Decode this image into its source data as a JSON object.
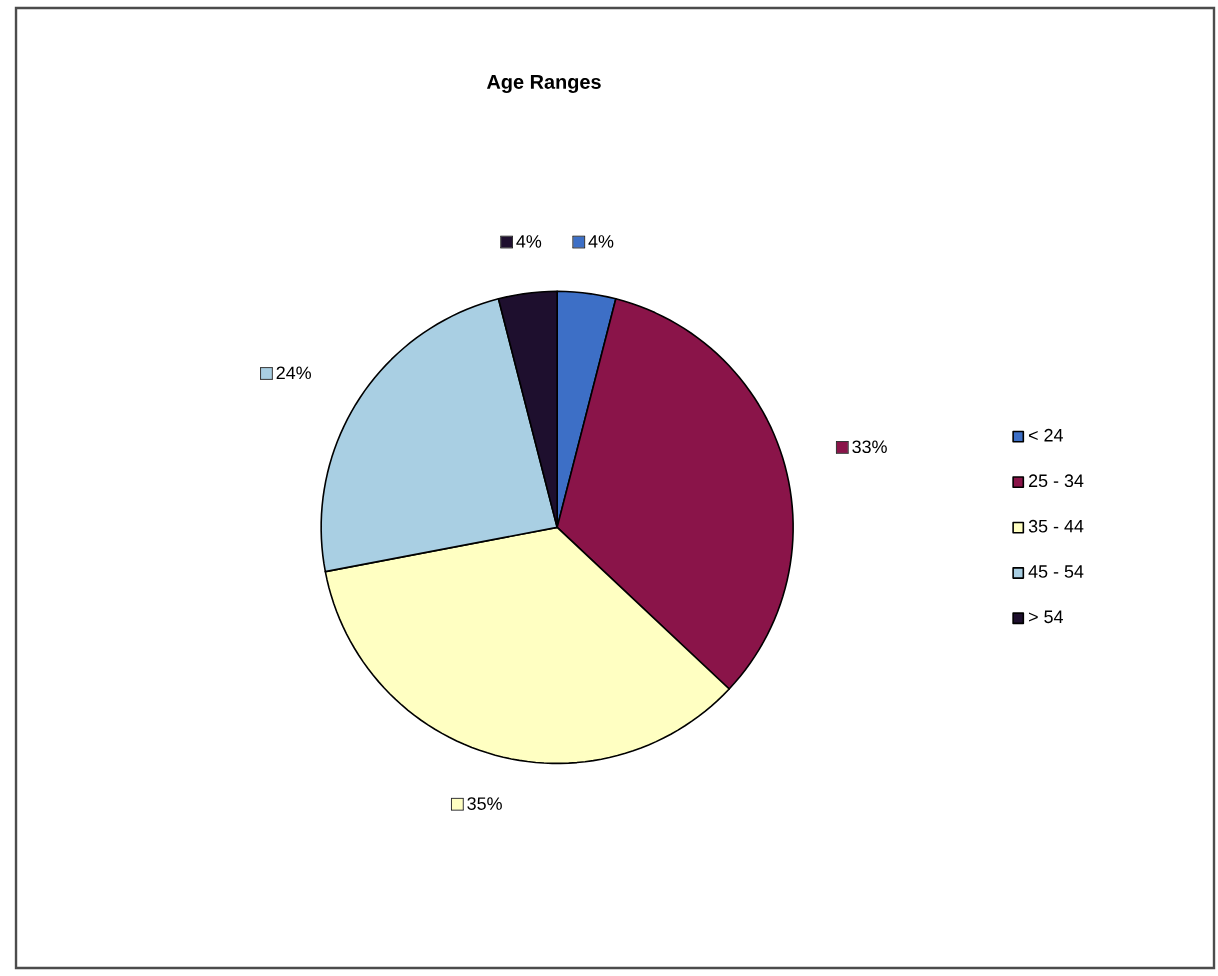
{
  "chart_data": {
    "type": "pie",
    "title": "Age Ranges",
    "categories": [
      "< 24",
      "25 - 34",
      "35 - 44",
      "45 - 54",
      "> 54"
    ],
    "values": [
      4,
      33,
      35,
      24,
      4
    ],
    "value_labels": [
      "4%",
      "33%",
      "35%",
      "24%",
      "4%"
    ],
    "colors": [
      "#3d6fc6",
      "#8a1449",
      "#ffffc2",
      "#a9cfe3",
      "#1e0f2e"
    ],
    "legend": "right"
  }
}
